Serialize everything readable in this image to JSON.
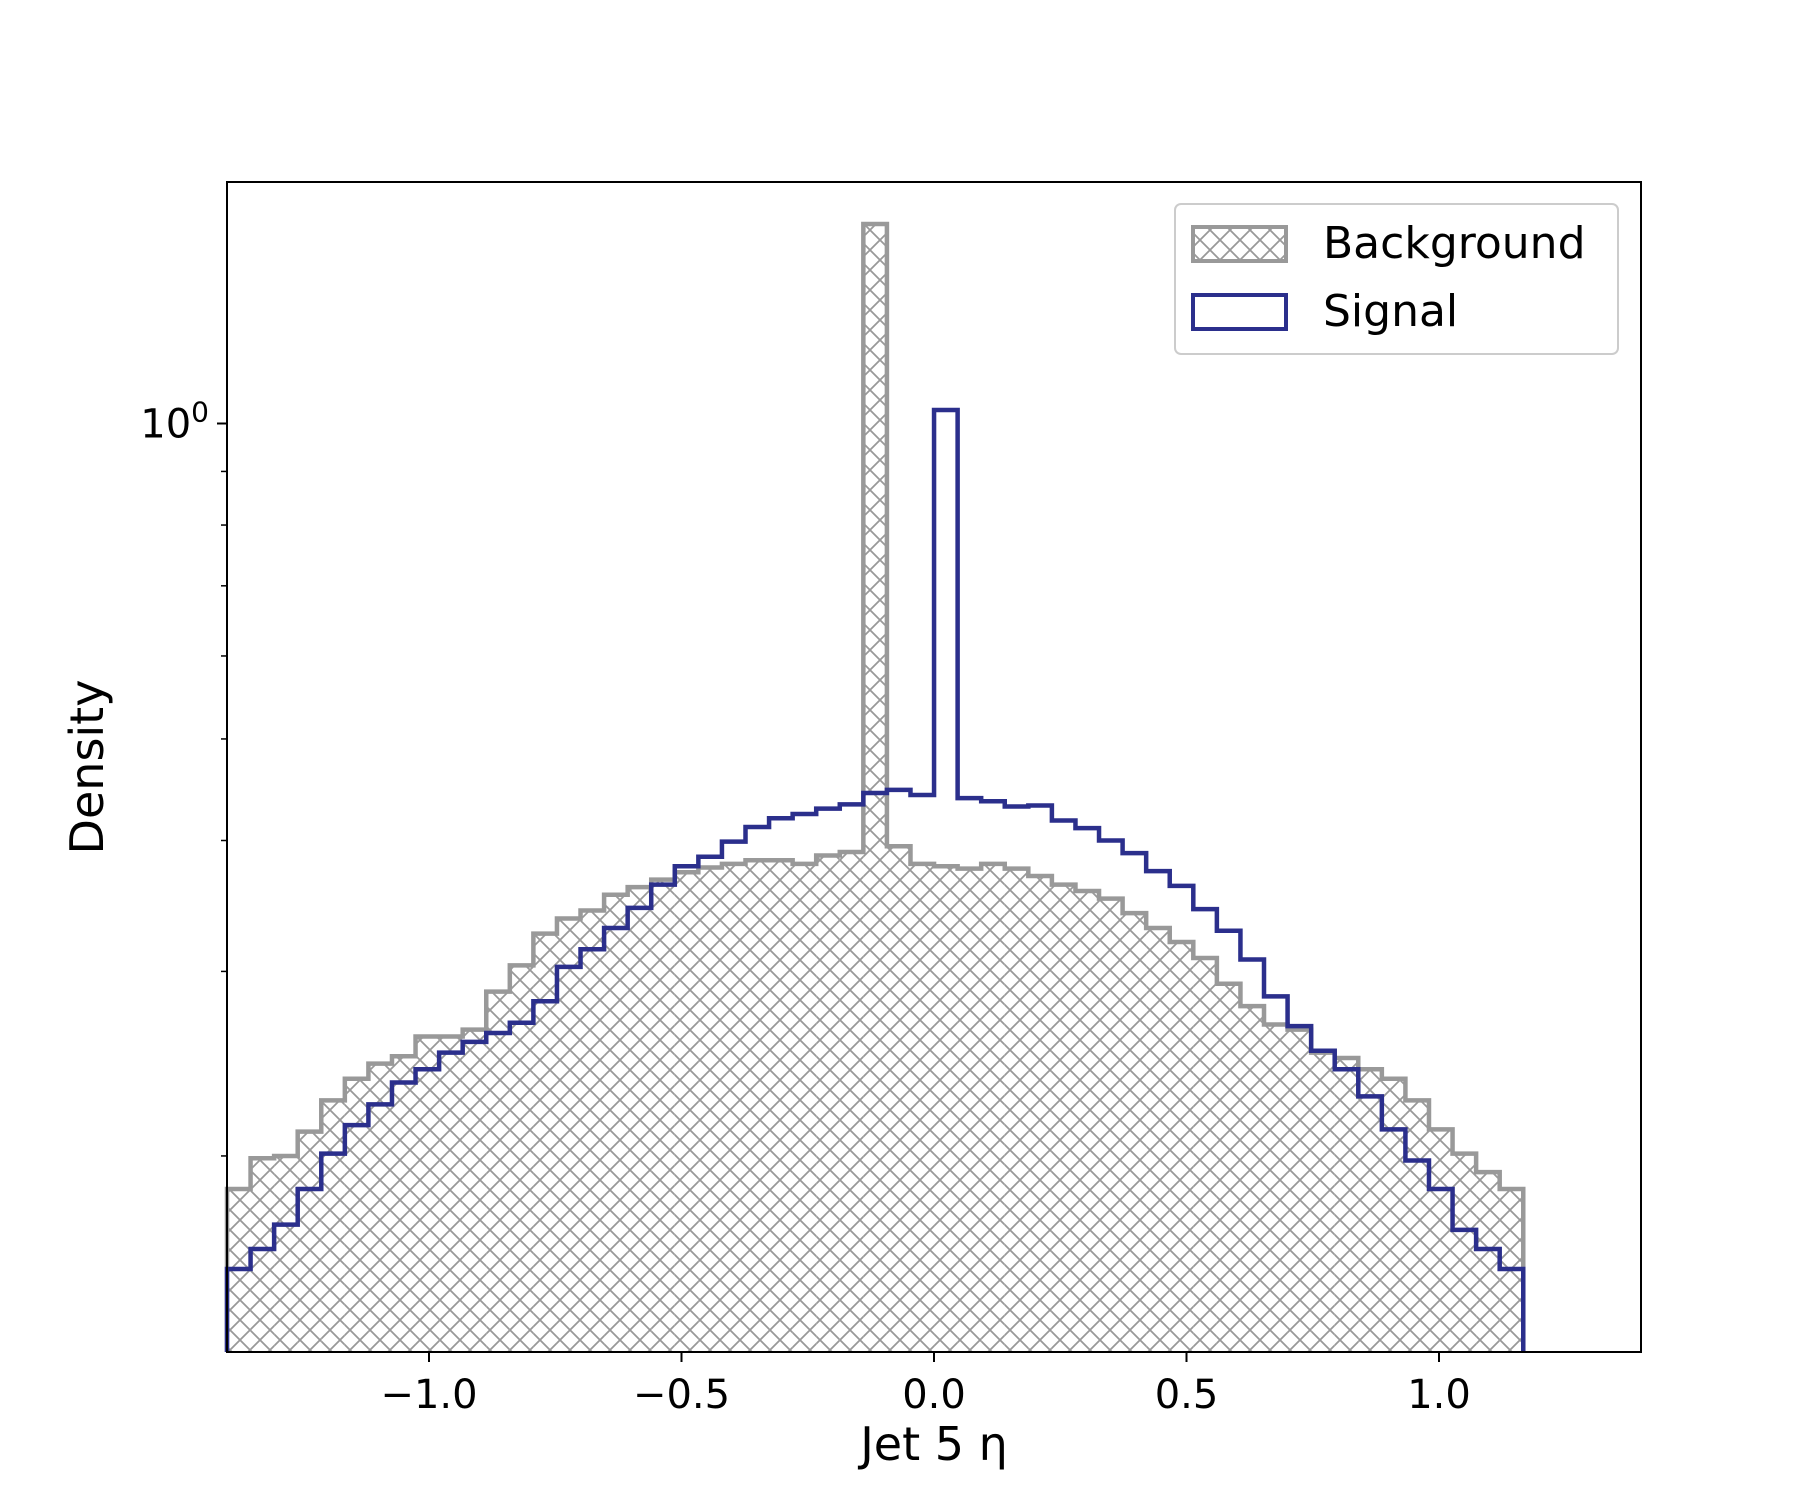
{
  "chart_data": {
    "type": "histogram-step",
    "xlabel": "Jet 5 η",
    "ylabel": "Density",
    "xlim": [
      -1.4,
      1.4
    ],
    "ylim": [
      0.13,
      1.7
    ],
    "yscale": "log",
    "x_ticks": [
      -1.0,
      -0.5,
      0.0,
      0.5,
      1.0
    ],
    "x_tick_labels": [
      "−1.0",
      "−0.5",
      "0.0",
      "0.5",
      "1.0"
    ],
    "y_tick_label": {
      "base": "10",
      "exponent": "0",
      "value": 1.0
    },
    "bin_edges_start": -1.4,
    "bin_width": 0.04667,
    "legend_position": "top-right",
    "series": [
      {
        "name": "Background",
        "style": "hatched-fill",
        "color": "#999999",
        "values": [
          0.186,
          0.199,
          0.2,
          0.211,
          0.226,
          0.237,
          0.245,
          0.249,
          0.26,
          0.26,
          0.264,
          0.287,
          0.304,
          0.326,
          0.337,
          0.343,
          0.355,
          0.361,
          0.367,
          0.373,
          0.377,
          0.38,
          0.383,
          0.383,
          0.38,
          0.387,
          0.39,
          1.55,
          0.395,
          0.38,
          0.378,
          0.376,
          0.38,
          0.376,
          0.37,
          0.363,
          0.358,
          0.352,
          0.341,
          0.33,
          0.32,
          0.309,
          0.292,
          0.278,
          0.267,
          0.264,
          0.251,
          0.248,
          0.242,
          0.237,
          0.226,
          0.212,
          0.201,
          0.193,
          0.186
        ]
      },
      {
        "name": "Signal",
        "style": "step-line",
        "color": "#2b2f8c",
        "values": [
          0.156,
          0.163,
          0.172,
          0.186,
          0.201,
          0.214,
          0.224,
          0.235,
          0.242,
          0.251,
          0.257,
          0.262,
          0.268,
          0.281,
          0.303,
          0.315,
          0.33,
          0.345,
          0.363,
          0.378,
          0.386,
          0.399,
          0.412,
          0.42,
          0.424,
          0.429,
          0.433,
          0.444,
          0.447,
          0.442,
          1.03,
          0.439,
          0.436,
          0.431,
          0.432,
          0.418,
          0.411,
          0.4,
          0.389,
          0.374,
          0.362,
          0.344,
          0.328,
          0.308,
          0.284,
          0.266,
          0.252,
          0.242,
          0.228,
          0.212,
          0.198,
          0.186,
          0.17,
          0.163,
          0.156
        ]
      }
    ]
  }
}
